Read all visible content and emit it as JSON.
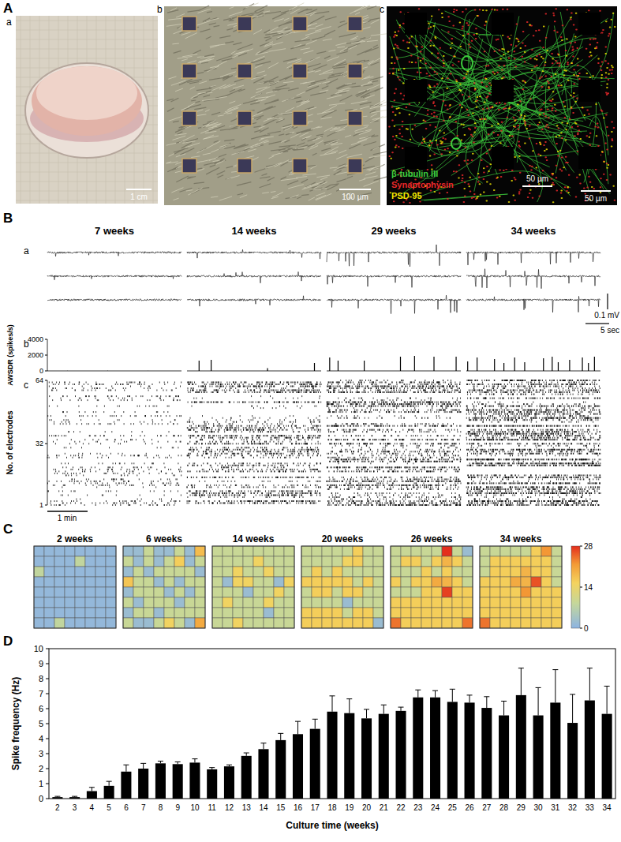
{
  "panels": {
    "A": {
      "label": "A",
      "images": [
        {
          "label": "a",
          "scale_bar": "1 cm"
        },
        {
          "label": "b",
          "scale_bar": "100 µm"
        },
        {
          "label": "c",
          "scale_bars": [
            "50 µm",
            "50 µm"
          ],
          "stains": [
            {
              "name": "β-tubulin III",
              "color": "#3dcc3d"
            },
            {
              "name": "Synaptophysin",
              "color": "#e8282a"
            },
            {
              "name": "PSD-95",
              "color": "#f2e600"
            }
          ]
        }
      ]
    },
    "B": {
      "label": "B",
      "columns": [
        "7 weeks",
        "14 weeks",
        "29 weeks",
        "34 weeks"
      ],
      "row_labels": [
        "a",
        "b",
        "c"
      ],
      "trace_scale": {
        "voltage": "0.1 mV",
        "time": "5 sec"
      },
      "raster": {
        "y_label": "No. of electrodes",
        "ylim": [
          1,
          64
        ],
        "yticks": [
          1,
          32,
          64
        ],
        "scale_bar": "1 min"
      }
    },
    "C": {
      "label": "C"
    },
    "D": {
      "label": "D"
    }
  },
  "chart_data": [
    {
      "type": "stem",
      "y_label": "AWSDR (spikes/s)",
      "x": [
        30,
        90,
        150
      ],
      "values": [
        15,
        20,
        10
      ],
      "xlim": [
        0,
        200
      ],
      "ylim": [
        0,
        4000
      ],
      "yticks": [
        0,
        2000,
        4000
      ],
      "tick_labels": "y"
    },
    {
      "type": "stem",
      "x": [
        18,
        36,
        120,
        190
      ],
      "values": [
        1300,
        1400,
        350,
        1000
      ],
      "xlim": [
        0,
        200
      ],
      "ylim": [
        0,
        4000
      ],
      "yticks": [
        0,
        2000,
        4000
      ],
      "tick_labels": false
    },
    {
      "type": "stem",
      "x": [
        4.5,
        17,
        56,
        110,
        131,
        160,
        193
      ],
      "values": [
        1700,
        1300,
        1300,
        1800,
        1900,
        1800,
        1800
      ],
      "xlim": [
        0,
        200
      ],
      "ylim": [
        0,
        4000
      ],
      "yticks": [
        0,
        2000,
        4000
      ],
      "tick_labels": false
    },
    {
      "type": "stem",
      "x": [
        2,
        16,
        42,
        56,
        72,
        87,
        115,
        128,
        137,
        154,
        173,
        182,
        191
      ],
      "values": [
        1200,
        1700,
        1500,
        1000,
        1700,
        1100,
        1600,
        1800,
        1100,
        1400,
        1700,
        1000,
        1800
      ],
      "xlim": [
        0,
        200
      ],
      "ylim": [
        0,
        4000
      ],
      "yticks": [
        0,
        2000,
        4000
      ],
      "tick_labels": false
    },
    {
      "type": "heatmap",
      "title": "2 weeks",
      "zlim": [
        0,
        28
      ],
      "cells": [
        [
          1,
          1,
          1,
          1,
          1,
          1,
          1,
          1
        ],
        [
          1,
          1,
          1,
          1,
          8,
          1,
          1,
          1
        ],
        [
          8,
          1,
          1,
          1,
          1,
          1,
          1,
          1
        ],
        [
          1,
          1,
          1,
          1,
          1,
          1,
          1,
          1
        ],
        [
          1,
          1,
          1,
          1,
          1,
          1,
          1,
          1
        ],
        [
          1,
          1,
          1,
          1,
          1,
          1,
          1,
          1
        ],
        [
          1,
          1,
          1,
          1,
          1,
          1,
          1,
          1
        ],
        [
          1,
          1,
          8,
          1,
          1,
          1,
          1,
          1
        ]
      ]
    },
    {
      "type": "heatmap",
      "title": "6 weeks",
      "zlim": [
        0,
        28
      ],
      "cells": [
        [
          2,
          2,
          9,
          2,
          2,
          9,
          2,
          18
        ],
        [
          9,
          2,
          9,
          2,
          9,
          16,
          2,
          9
        ],
        [
          2,
          9,
          2,
          9,
          9,
          9,
          9,
          2
        ],
        [
          17,
          9,
          9,
          2,
          9,
          2,
          9,
          9
        ],
        [
          2,
          9,
          9,
          9,
          2,
          9,
          2,
          9
        ],
        [
          9,
          2,
          9,
          9,
          9,
          2,
          9,
          9
        ],
        [
          2,
          9,
          9,
          2,
          9,
          9,
          9,
          9
        ],
        [
          9,
          2,
          2,
          9,
          15,
          9,
          2,
          20
        ]
      ]
    },
    {
      "type": "heatmap",
      "title": "14 weeks",
      "zlim": [
        0,
        28
      ],
      "cells": [
        [
          9,
          9,
          9,
          9,
          9,
          9,
          9,
          9
        ],
        [
          9,
          9,
          9,
          9,
          15,
          9,
          9,
          9
        ],
        [
          9,
          9,
          15,
          9,
          9,
          15,
          9,
          9
        ],
        [
          9,
          2,
          15,
          15,
          9,
          9,
          2,
          15
        ],
        [
          9,
          9,
          9,
          2,
          9,
          9,
          15,
          9
        ],
        [
          9,
          15,
          9,
          9,
          9,
          15,
          9,
          9
        ],
        [
          9,
          9,
          9,
          9,
          9,
          2,
          9,
          9
        ],
        [
          9,
          9,
          15,
          9,
          9,
          9,
          9,
          9
        ]
      ]
    },
    {
      "type": "heatmap",
      "title": "20 weeks",
      "zlim": [
        0,
        28
      ],
      "cells": [
        [
          9,
          9,
          9,
          9,
          9,
          16,
          9,
          9
        ],
        [
          9,
          9,
          9,
          9,
          15,
          16,
          9,
          9
        ],
        [
          9,
          16,
          9,
          16,
          9,
          9,
          9,
          9
        ],
        [
          16,
          16,
          16,
          16,
          16,
          9,
          16,
          9
        ],
        [
          9,
          16,
          16,
          9,
          16,
          16,
          9,
          9
        ],
        [
          9,
          9,
          9,
          9,
          2,
          9,
          9,
          9
        ],
        [
          16,
          16,
          16,
          16,
          9,
          16,
          16,
          9
        ],
        [
          16,
          16,
          16,
          16,
          16,
          16,
          16,
          2
        ]
      ]
    },
    {
      "type": "heatmap",
      "title": "26 weeks",
      "zlim": [
        0,
        28
      ],
      "cells": [
        [
          9,
          9,
          9,
          9,
          9,
          28,
          9,
          2
        ],
        [
          9,
          16,
          16,
          9,
          16,
          19,
          16,
          9
        ],
        [
          9,
          9,
          9,
          16,
          9,
          16,
          9,
          9
        ],
        [
          16,
          9,
          16,
          16,
          20,
          19,
          16,
          9
        ],
        [
          9,
          9,
          9,
          16,
          16,
          27,
          16,
          16
        ],
        [
          16,
          16,
          16,
          16,
          16,
          16,
          16,
          16
        ],
        [
          16,
          16,
          16,
          16,
          16,
          16,
          16,
          16
        ],
        [
          24,
          16,
          16,
          16,
          16,
          16,
          16,
          24
        ]
      ]
    },
    {
      "type": "heatmap",
      "title": "34 weeks",
      "zlim": [
        0,
        28
      ],
      "zticks": [
        0,
        14,
        28
      ],
      "cells": [
        [
          9,
          9,
          9,
          9,
          9,
          16,
          22,
          9
        ],
        [
          9,
          16,
          16,
          16,
          16,
          16,
          16,
          9
        ],
        [
          9,
          16,
          16,
          16,
          19,
          16,
          16,
          9
        ],
        [
          16,
          16,
          16,
          20,
          19,
          26,
          16,
          9
        ],
        [
          16,
          16,
          16,
          16,
          22,
          16,
          16,
          16
        ],
        [
          16,
          16,
          16,
          16,
          16,
          16,
          16,
          16
        ],
        [
          16,
          16,
          16,
          16,
          16,
          16,
          16,
          16
        ],
        [
          24,
          16,
          16,
          16,
          16,
          16,
          16,
          16
        ]
      ]
    },
    {
      "type": "bar",
      "x_label": "Culture time (weeks)",
      "y_label": "Spike frequency (Hz)",
      "color": "#000000",
      "categories": [
        "2",
        "3",
        "4",
        "5",
        "6",
        "7",
        "8",
        "9",
        "10",
        "11",
        "12",
        "13",
        "14",
        "15",
        "16",
        "17",
        "18",
        "19",
        "20",
        "21",
        "22",
        "23",
        "24",
        "25",
        "26",
        "27",
        "28",
        "29",
        "30",
        "31",
        "32",
        "33",
        "34"
      ],
      "values": [
        0.1,
        0.1,
        0.5,
        0.85,
        1.8,
        2.0,
        2.35,
        2.3,
        2.4,
        1.95,
        2.15,
        2.85,
        3.3,
        3.9,
        4.3,
        4.65,
        5.8,
        5.7,
        5.35,
        5.65,
        5.85,
        6.75,
        6.75,
        6.45,
        6.4,
        6.05,
        5.55,
        6.9,
        5.55,
        6.4,
        5.05,
        6.55,
        5.65
      ],
      "errors": [
        0.05,
        0.05,
        0.25,
        0.3,
        0.45,
        0.35,
        0.15,
        0.15,
        0.25,
        0.12,
        0.1,
        0.2,
        0.4,
        0.45,
        0.85,
        0.65,
        1.05,
        0.95,
        0.6,
        0.6,
        0.25,
        0.5,
        0.45,
        0.85,
        0.5,
        0.75,
        0.95,
        1.8,
        1.85,
        2.2,
        1.9,
        2.15,
        1.85
      ],
      "ylim": [
        0,
        10
      ],
      "yticks": [
        0,
        1,
        2,
        3,
        4,
        5,
        6,
        7,
        8,
        9,
        10
      ]
    }
  ]
}
